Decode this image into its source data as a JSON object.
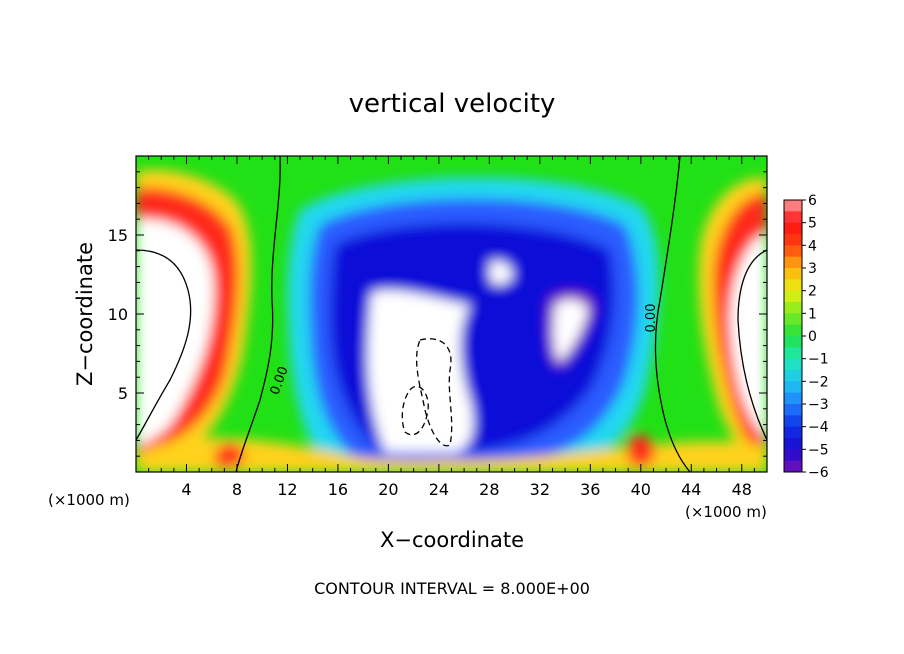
{
  "chart_data": {
    "type": "heatmap",
    "title": "vertical velocity",
    "xlabel": "X−coordinate",
    "ylabel": "Z−coordinate",
    "x_unit_left": "(×1000 m)",
    "x_unit_right": "(×1000 m)",
    "footer": "CONTOUR INTERVAL = 8.000E+00",
    "xlim": [
      0,
      50
    ],
    "ylim": [
      0,
      20
    ],
    "x_ticks": [
      "4",
      "8",
      "12",
      "16",
      "20",
      "24",
      "28",
      "32",
      "36",
      "40",
      "44",
      "48"
    ],
    "y_ticks": [
      "5",
      "10",
      "15"
    ],
    "colorbar": {
      "min": -6,
      "max": 6,
      "labels": [
        "6",
        "5",
        "4",
        "3",
        "2",
        "1",
        "0",
        "−1",
        "−2",
        "−3",
        "−4",
        "−5",
        "−6"
      ]
    },
    "contour_labels": [
      "0.00",
      "0.00"
    ],
    "grid": false,
    "legend": "colorbar-right"
  }
}
